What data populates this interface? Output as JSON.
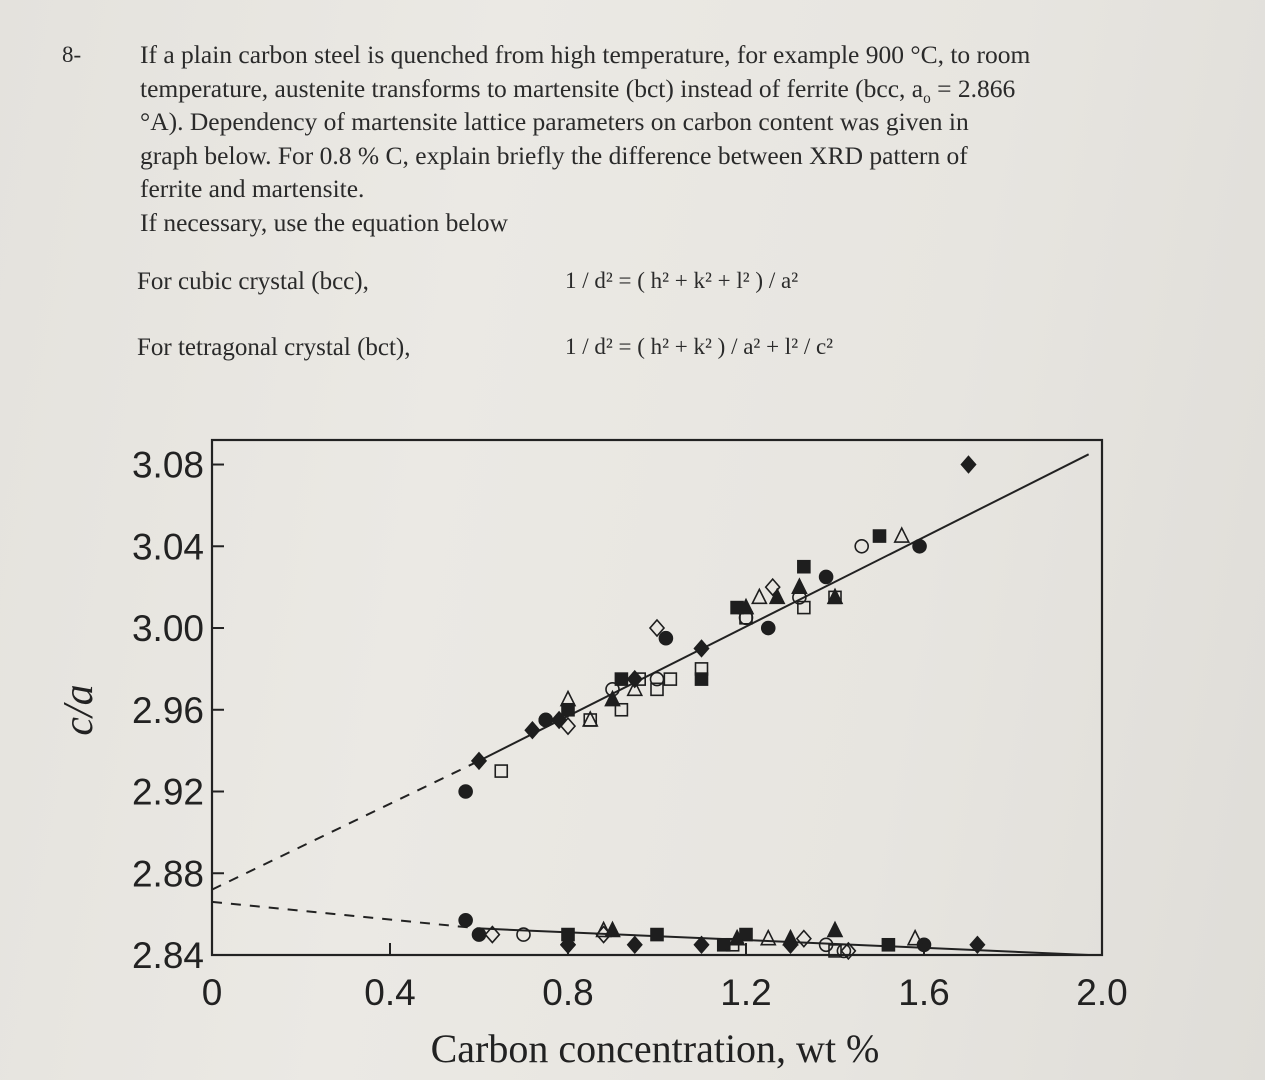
{
  "question": {
    "number": "8-",
    "paragraph": [
      "If a plain carbon steel is quenched from high temperature, for example 900 °C, to room",
      "temperature, austenite transforms to martensite (bct) instead of ferrite (bcc, a",
      "o",
      " = 2.866",
      "°A). Dependency of martensite lattice parameters on carbon content was given in",
      "graph below. For 0.8 % C, explain briefly the difference between XRD pattern of",
      "ferrite and martensite."
    ],
    "instruction": "If necessary, use the equation below",
    "equations": [
      {
        "label": "For cubic crystal (bcc),",
        "eq": "1 / d² = ( h² + k² + l² ) / a²"
      },
      {
        "label": "For tetragonal crystal (bct),",
        "eq": "1 / d² = ( h² + k² ) / a²  +  l² / c²"
      }
    ]
  },
  "chart_data": {
    "type": "scatter",
    "xlabel": "Carbon concentration, wt %",
    "ylabel": "c/a",
    "xlim": [
      0,
      2.0
    ],
    "ylim": [
      2.84,
      3.08
    ],
    "x_ticks": [
      "0",
      "0.4",
      "0.8",
      "1.2",
      "1.6",
      "2.0"
    ],
    "y_ticks": [
      "3.08",
      "3.04",
      "3.00",
      "2.96",
      "2.92",
      "2.88",
      "2.84"
    ],
    "series": [
      {
        "marker": "diamond-filled",
        "points": [
          [
            0.6,
            2.935
          ],
          [
            0.72,
            2.95
          ],
          [
            0.8,
            2.845
          ],
          [
            0.95,
            2.845
          ],
          [
            1.1,
            2.99
          ],
          [
            1.1,
            2.845
          ],
          [
            1.3,
            2.845
          ],
          [
            1.7,
            3.08
          ],
          [
            1.72,
            2.845
          ],
          [
            0.95,
            2.975
          ],
          [
            0.78,
            2.955
          ]
        ]
      },
      {
        "marker": "circle-filled",
        "points": [
          [
            0.57,
            2.92
          ],
          [
            0.57,
            2.857
          ],
          [
            0.6,
            2.85
          ],
          [
            0.75,
            2.955
          ],
          [
            1.02,
            2.995
          ],
          [
            1.25,
            3.0
          ],
          [
            1.38,
            3.025
          ],
          [
            1.59,
            3.04
          ],
          [
            1.6,
            2.845
          ]
        ]
      },
      {
        "marker": "square-filled",
        "points": [
          [
            0.8,
            2.96
          ],
          [
            0.8,
            2.85
          ],
          [
            0.92,
            2.975
          ],
          [
            1.0,
            2.85
          ],
          [
            1.1,
            2.975
          ],
          [
            1.18,
            3.01
          ],
          [
            1.2,
            2.85
          ],
          [
            1.33,
            3.03
          ],
          [
            1.5,
            3.045
          ],
          [
            1.52,
            2.845
          ],
          [
            1.15,
            2.845
          ]
        ]
      },
      {
        "marker": "triangle-filled",
        "points": [
          [
            0.9,
            2.965
          ],
          [
            0.9,
            2.852
          ],
          [
            1.2,
            3.01
          ],
          [
            1.27,
            3.015
          ],
          [
            1.32,
            3.02
          ],
          [
            1.4,
            3.015
          ],
          [
            1.4,
            2.852
          ],
          [
            1.18,
            2.848
          ],
          [
            1.3,
            2.848
          ]
        ]
      },
      {
        "marker": "circle-open",
        "points": [
          [
            0.7,
            2.85
          ],
          [
            0.75,
            2.955
          ],
          [
            0.9,
            2.97
          ],
          [
            1.0,
            2.975
          ],
          [
            1.2,
            3.005
          ],
          [
            1.32,
            3.015
          ],
          [
            1.46,
            3.04
          ],
          [
            1.38,
            2.845
          ],
          [
            1.42,
            2.842
          ]
        ]
      },
      {
        "marker": "diamond-open",
        "points": [
          [
            0.63,
            2.85
          ],
          [
            0.8,
            2.845
          ],
          [
            0.8,
            2.952
          ],
          [
            0.88,
            2.85
          ],
          [
            1.0,
            3.0
          ],
          [
            1.26,
            3.02
          ],
          [
            1.33,
            2.848
          ],
          [
            1.43,
            2.842
          ]
        ]
      },
      {
        "marker": "triangle-open",
        "points": [
          [
            0.8,
            2.965
          ],
          [
            0.85,
            2.955
          ],
          [
            0.88,
            2.852
          ],
          [
            0.95,
            2.97
          ],
          [
            1.23,
            3.015
          ],
          [
            1.55,
            3.045
          ],
          [
            1.58,
            2.848
          ],
          [
            1.25,
            2.848
          ]
        ]
      },
      {
        "marker": "square-open",
        "points": [
          [
            0.65,
            2.93
          ],
          [
            0.85,
            2.955
          ],
          [
            0.92,
            2.96
          ],
          [
            0.96,
            2.975
          ],
          [
            1.03,
            2.975
          ],
          [
            1.0,
            2.97
          ],
          [
            1.1,
            2.98
          ],
          [
            1.2,
            3.005
          ],
          [
            1.33,
            3.01
          ],
          [
            1.4,
            3.015
          ],
          [
            1.17,
            2.845
          ],
          [
            1.4,
            2.842
          ]
        ]
      }
    ],
    "fit_lines": [
      {
        "style": "solid",
        "from": [
          0.6,
          2.935
        ],
        "to": [
          1.97,
          3.085
        ]
      },
      {
        "style": "dashed",
        "from": [
          0.0,
          2.872
        ],
        "to": [
          0.6,
          2.935
        ]
      },
      {
        "style": "solid",
        "from": [
          0.6,
          2.853
        ],
        "to": [
          1.97,
          2.84
        ]
      },
      {
        "style": "dashed",
        "from": [
          0.0,
          2.866
        ],
        "to": [
          0.6,
          2.853
        ]
      }
    ],
    "grid": false,
    "legend": "none"
  }
}
